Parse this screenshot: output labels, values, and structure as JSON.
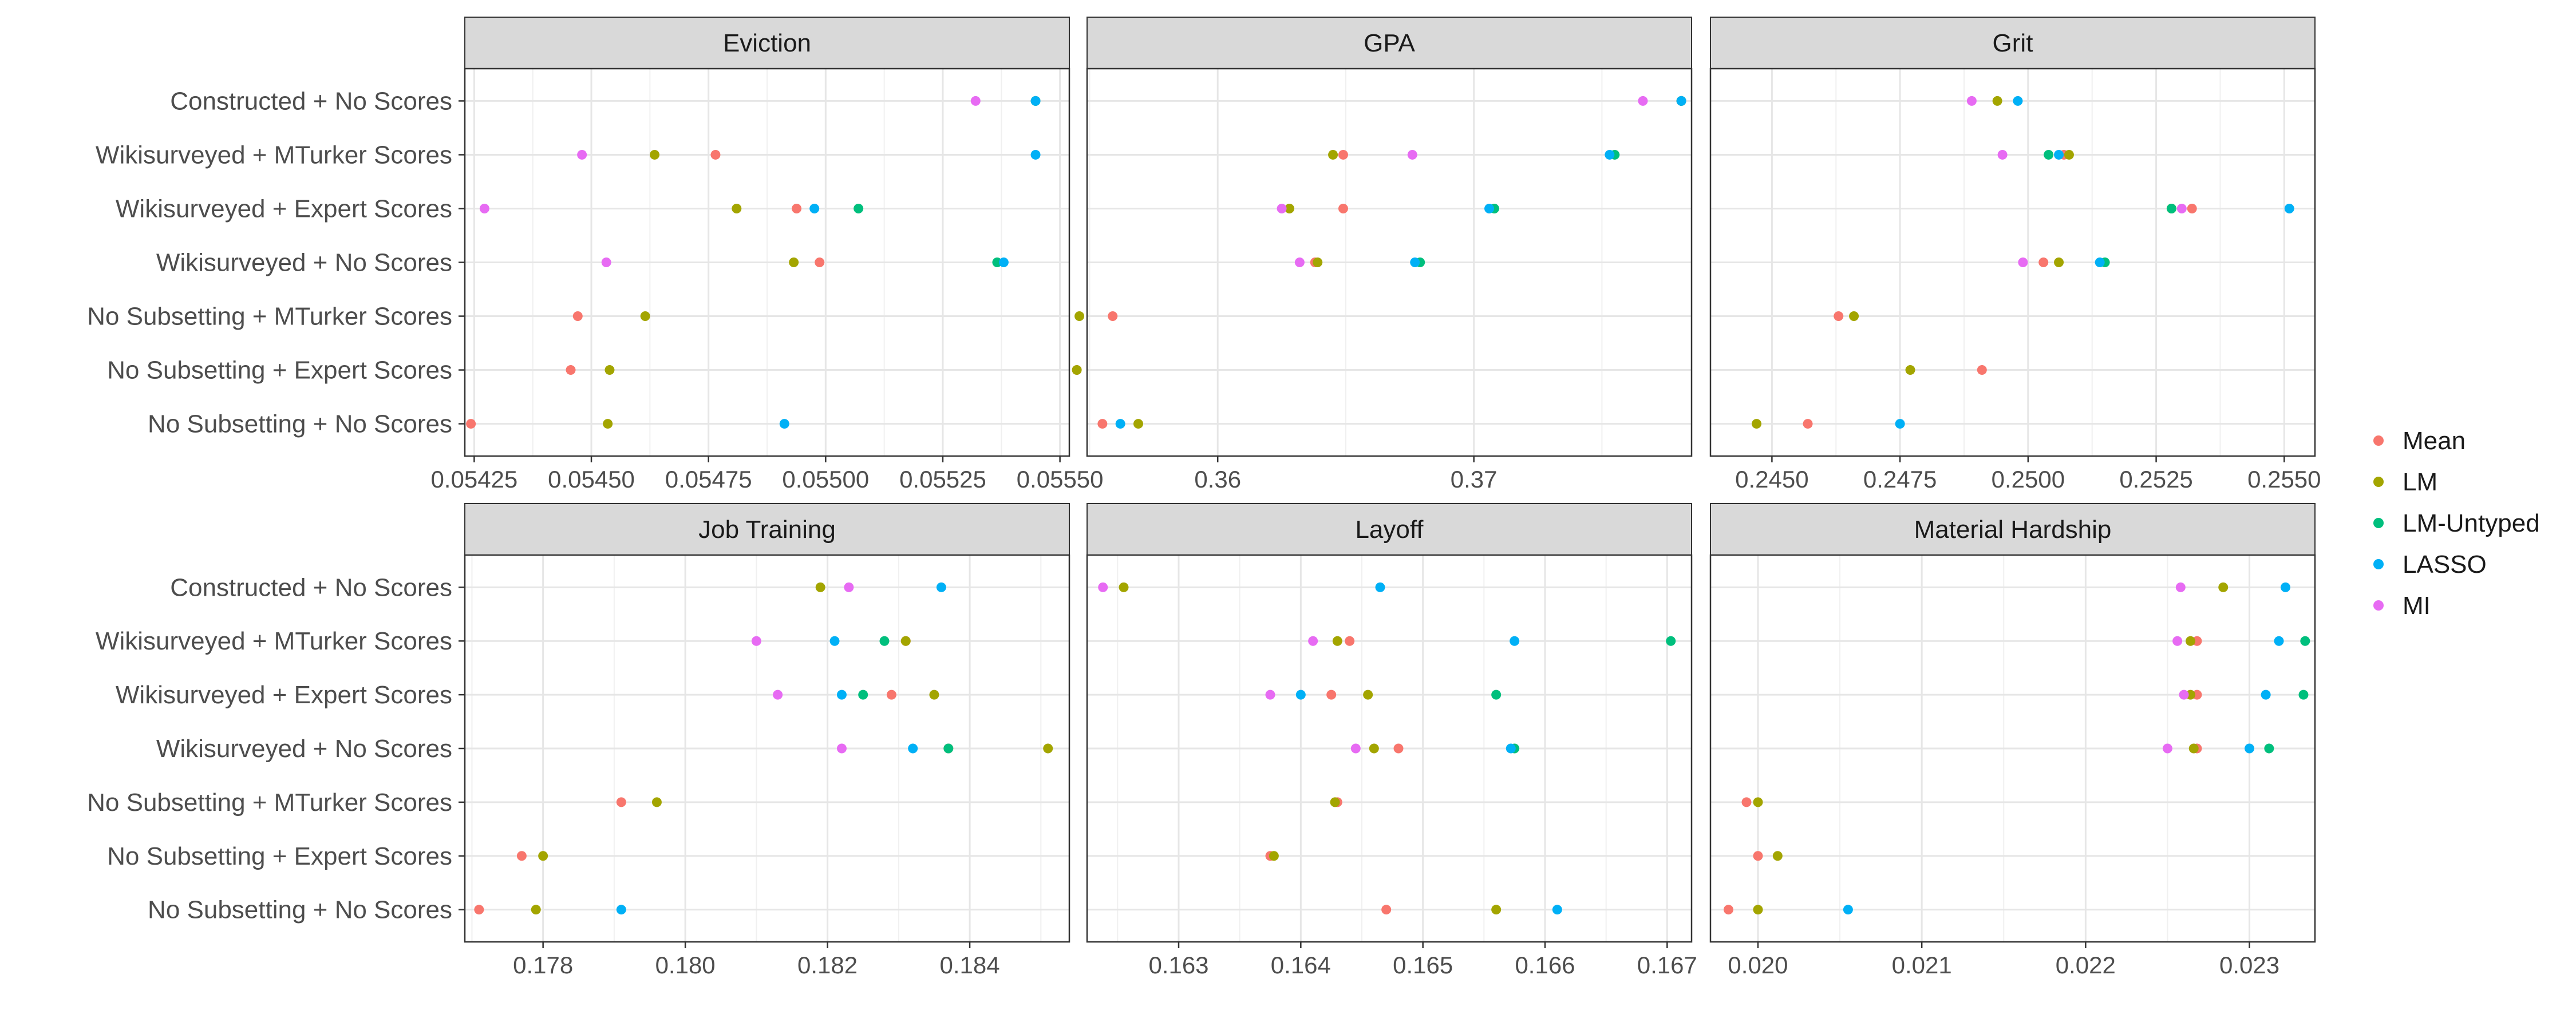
{
  "chart_data": {
    "type": "scatter",
    "row_labels": [
      "Constructed + No Scores",
      "Wikisurveyed + MTurker Scores",
      "Wikisurveyed + Expert Scores",
      "Wikisurveyed + No Scores",
      "No Subsetting + MTurker Scores",
      "No Subsetting + Expert Scores",
      "No Subsetting + No Scores"
    ],
    "legend": [
      {
        "name": "Mean",
        "color": "#F8766D"
      },
      {
        "name": "LM",
        "color": "#A3A500"
      },
      {
        "name": "LM-Untyped",
        "color": "#00BF7D"
      },
      {
        "name": "LASSO",
        "color": "#00B0F6"
      },
      {
        "name": "MI",
        "color": "#E76BF3"
      }
    ],
    "panels": [
      {
        "title": "Eviction",
        "xlim": [
          0.05423,
          0.05552
        ],
        "ticks": [
          {
            "value": 0.05425,
            "label": "0.05425"
          },
          {
            "value": 0.0545,
            "label": "0.05450"
          },
          {
            "value": 0.05475,
            "label": "0.05475"
          },
          {
            "value": 0.055,
            "label": "0.05500"
          },
          {
            "value": 0.05525,
            "label": "0.05525"
          },
          {
            "value": 0.0555,
            "label": "0.05550"
          }
        ],
        "points": {
          "Mean": [
            null,
            0.054765,
            0.054938,
            0.054987,
            0.054471,
            0.054456,
            0.054243
          ],
          "LM": [
            0.055448,
            0.054635,
            0.05481,
            0.054932,
            0.054615,
            0.054539,
            0.054535
          ],
          "LM-Untyped": [
            0.055448,
            null,
            0.05507,
            0.055366,
            null,
            null,
            null
          ],
          "LASSO": [
            0.055448,
            0.055448,
            0.054976,
            0.05538,
            null,
            null,
            0.054912
          ],
          "MI": [
            0.05532,
            0.05448,
            0.054272,
            0.054532,
            null,
            null,
            null
          ]
        }
      },
      {
        "title": "GPA",
        "xlim": [
          0.3549,
          0.3785
        ],
        "ticks": [
          {
            "value": 0.36,
            "label": "0.36"
          },
          {
            "value": 0.37,
            "label": "0.37"
          }
        ],
        "points": {
          "Mean": [
            0.3781,
            0.3649,
            0.3649,
            0.3638,
            0.3559,
            0.3545,
            0.3555
          ],
          "LM": [
            0.3781,
            0.3645,
            0.3628,
            0.3639,
            0.3546,
            0.3545,
            0.3569
          ],
          "LM-Untyped": [
            0.3781,
            0.3755,
            0.3708,
            0.3679,
            null,
            null,
            null
          ],
          "LASSO": [
            0.3781,
            0.3753,
            0.3706,
            0.3677,
            null,
            null,
            0.3562
          ],
          "MI": [
            0.3766,
            0.3676,
            0.3625,
            0.3632,
            null,
            null,
            null
          ]
        }
      },
      {
        "title": "Grit",
        "xlim": [
          0.2438,
          0.2556
        ],
        "ticks": [
          {
            "value": 0.245,
            "label": "0.2450"
          },
          {
            "value": 0.2475,
            "label": "0.2475"
          },
          {
            "value": 0.25,
            "label": "0.2500"
          },
          {
            "value": 0.2525,
            "label": "0.2525"
          },
          {
            "value": 0.255,
            "label": "0.2550"
          }
        ],
        "points": {
          "Mean": [
            null,
            0.2507,
            0.2532,
            0.2503,
            0.2463,
            0.2491,
            0.2457
          ],
          "LM": [
            0.2494,
            0.2508,
            0.2528,
            0.2506,
            0.2466,
            0.2477,
            0.2447
          ],
          "LM-Untyped": [
            null,
            0.2504,
            0.2528,
            0.2515,
            null,
            null,
            null
          ],
          "LASSO": [
            0.2498,
            0.2506,
            0.2551,
            0.2514,
            null,
            null,
            0.2475
          ],
          "MI": [
            0.2489,
            0.2495,
            0.253,
            0.2499,
            null,
            null,
            null
          ]
        }
      },
      {
        "title": "Job Training",
        "xlim": [
          0.1769,
          0.1854
        ],
        "ticks": [
          {
            "value": 0.178,
            "label": "0.178"
          },
          {
            "value": 0.18,
            "label": "0.180"
          },
          {
            "value": 0.182,
            "label": "0.182"
          },
          {
            "value": 0.184,
            "label": "0.184"
          }
        ],
        "points": {
          "Mean": [
            null,
            0.1831,
            0.1829,
            0.1837,
            0.1791,
            0.1777,
            0.1771
          ],
          "LM": [
            0.1819,
            0.1831,
            0.1835,
            0.1851,
            0.1796,
            0.178,
            0.1779
          ],
          "LM-Untyped": [
            null,
            0.1828,
            0.1825,
            0.1837,
            null,
            null,
            null
          ],
          "LASSO": [
            0.1836,
            0.1821,
            0.1822,
            0.1832,
            null,
            null,
            0.1791
          ],
          "MI": [
            0.1823,
            0.181,
            0.1813,
            0.1822,
            null,
            null,
            null
          ]
        }
      },
      {
        "title": "Layoff",
        "xlim": [
          0.16225,
          0.1672
        ],
        "ticks": [
          {
            "value": 0.163,
            "label": "0.163"
          },
          {
            "value": 0.164,
            "label": "0.164"
          },
          {
            "value": 0.165,
            "label": "0.165"
          },
          {
            "value": 0.166,
            "label": "0.166"
          },
          {
            "value": 0.167,
            "label": "0.167"
          }
        ],
        "points": {
          "Mean": [
            null,
            0.1644,
            0.16425,
            0.1648,
            0.1643,
            0.16375,
            0.1647
          ],
          "LM": [
            0.16255,
            0.1643,
            0.16455,
            0.1646,
            0.16428,
            0.16378,
            0.1656
          ],
          "LM-Untyped": [
            null,
            0.16703,
            0.1656,
            0.16575,
            null,
            null,
            null
          ],
          "LASSO": [
            0.16465,
            0.16575,
            0.164,
            0.16572,
            null,
            null,
            0.1661
          ],
          "MI": [
            0.16238,
            0.1641,
            0.16375,
            0.16445,
            null,
            null,
            null
          ]
        }
      },
      {
        "title": "Material Hardship",
        "xlim": [
          0.01971,
          0.0234
        ],
        "ticks": [
          {
            "value": 0.02,
            "label": "0.020"
          },
          {
            "value": 0.021,
            "label": "0.021"
          },
          {
            "value": 0.022,
            "label": "0.022"
          },
          {
            "value": 0.023,
            "label": "0.023"
          }
        ],
        "points": {
          "Mean": [
            null,
            0.02268,
            0.02268,
            0.02268,
            0.01993,
            0.02,
            0.01982
          ],
          "LM": [
            0.02284,
            0.02264,
            0.02264,
            0.02266,
            0.02,
            0.02012,
            0.02
          ],
          "LM-Untyped": [
            null,
            0.02334,
            0.02333,
            0.02312,
            null,
            null,
            null
          ],
          "LASSO": [
            0.02322,
            0.02318,
            0.0231,
            0.023,
            null,
            null,
            0.02055
          ],
          "MI": [
            0.02258,
            0.02256,
            0.0226,
            0.0225,
            null,
            null,
            null
          ]
        }
      }
    ]
  }
}
